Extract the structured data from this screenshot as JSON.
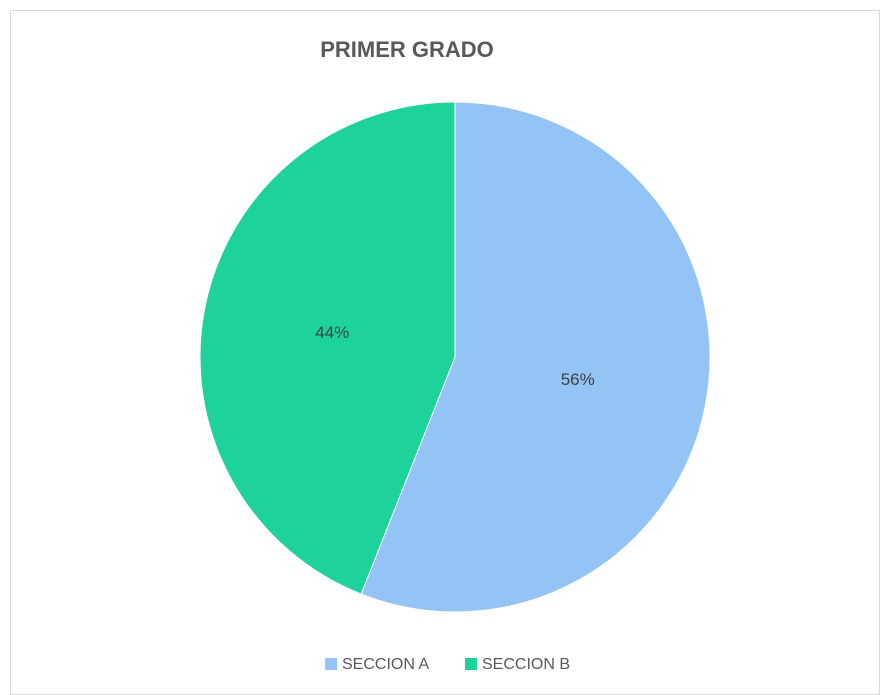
{
  "chart_data": {
    "type": "pie",
    "title": "PRIMER GRADO",
    "categories": [
      "SECCION A",
      "SECCION B"
    ],
    "values": [
      56,
      44
    ],
    "value_labels": [
      "56%",
      "44%"
    ],
    "colors": [
      "#93c4f5",
      "#1dd39b"
    ],
    "legend": "bottom"
  }
}
